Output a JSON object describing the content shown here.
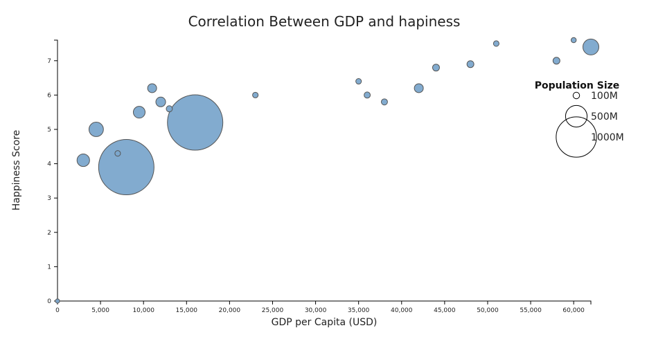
{
  "chart_data": {
    "type": "scatter",
    "title": "Correlation Between GDP and hapiness",
    "xlabel": "GDP per Capita (USD)",
    "ylabel": "Happiness Score",
    "xlim": [
      0,
      62000
    ],
    "ylim": [
      0,
      7.6
    ],
    "x_ticks": [
      0,
      5000,
      10000,
      15000,
      20000,
      25000,
      30000,
      35000,
      40000,
      45000,
      50000,
      55000,
      60000
    ],
    "x_tick_labels": [
      "0",
      "5,000",
      "10,000",
      "15,000",
      "20,000",
      "25,000",
      "30,000",
      "35,000",
      "40,000",
      "45,000",
      "50,000",
      "55,000",
      "60,000"
    ],
    "y_ticks": [
      0,
      1,
      2,
      3,
      4,
      5,
      6,
      7
    ],
    "y_tick_labels": [
      "0",
      "1",
      "2",
      "3",
      "4",
      "5",
      "6",
      "7"
    ],
    "grid": false,
    "size_encoding": "population_millions",
    "points": [
      {
        "gdp": 0,
        "happiness": 0,
        "population": 40
      },
      {
        "gdp": 3000,
        "happiness": 4.1,
        "population": 260
      },
      {
        "gdp": 4500,
        "happiness": 5.0,
        "population": 310
      },
      {
        "gdp": 8000,
        "happiness": 3.9,
        "population": 1400
      },
      {
        "gdp": 7000,
        "happiness": 4.3,
        "population": 75
      },
      {
        "gdp": 9500,
        "happiness": 5.5,
        "population": 240
      },
      {
        "gdp": 11000,
        "happiness": 6.2,
        "population": 165
      },
      {
        "gdp": 12000,
        "happiness": 5.8,
        "population": 185
      },
      {
        "gdp": 16000,
        "happiness": 5.2,
        "population": 1400
      },
      {
        "gdp": 13000,
        "happiness": 5.6,
        "population": 90
      },
      {
        "gdp": 23000,
        "happiness": 6.0,
        "population": 75
      },
      {
        "gdp": 35000,
        "happiness": 6.4,
        "population": 75
      },
      {
        "gdp": 36000,
        "happiness": 6.0,
        "population": 90
      },
      {
        "gdp": 38000,
        "happiness": 5.8,
        "population": 90
      },
      {
        "gdp": 42000,
        "happiness": 6.2,
        "population": 165
      },
      {
        "gdp": 44000,
        "happiness": 6.8,
        "population": 110
      },
      {
        "gdp": 48000,
        "happiness": 6.9,
        "population": 110
      },
      {
        "gdp": 51000,
        "happiness": 7.5,
        "population": 75
      },
      {
        "gdp": 58000,
        "happiness": 7.0,
        "population": 110
      },
      {
        "gdp": 60000,
        "happiness": 7.6,
        "population": 63
      },
      {
        "gdp": 62000,
        "happiness": 7.4,
        "population": 350
      }
    ],
    "legend": {
      "title": "Population Size",
      "placement": "right",
      "entries": [
        {
          "label": "100M",
          "population": 100
        },
        {
          "label": "500M",
          "population": 500
        },
        {
          "label": "1000M",
          "population": 1000
        }
      ]
    },
    "colors": {
      "bubble_fill": "#7ba7cc",
      "bubble_stroke": "#555555",
      "axis": "#000000"
    }
  }
}
